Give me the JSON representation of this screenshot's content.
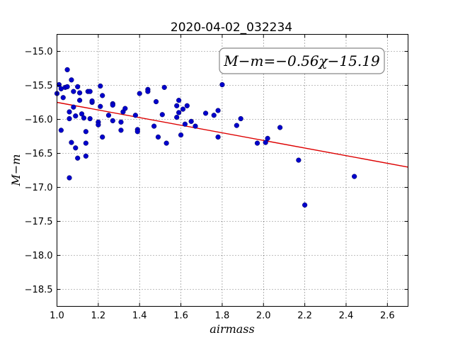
{
  "chart_data": {
    "type": "scatter",
    "title": "2020-04-02_032234",
    "xlabel": "airmass",
    "ylabel": "M−m",
    "xlim": [
      1.0,
      2.7
    ],
    "ylim": [
      -18.75,
      -14.75
    ],
    "y_inverted": true,
    "grid": true,
    "x_ticks": [
      1.0,
      1.2,
      1.4,
      1.6,
      1.8,
      2.0,
      2.2,
      2.4,
      2.6
    ],
    "x_tick_labels": [
      "1.0",
      "1.2",
      "1.4",
      "1.6",
      "1.8",
      "2.0",
      "2.2",
      "2.4",
      "2.6"
    ],
    "y_ticks": [
      -15.0,
      -15.5,
      -16.0,
      -16.5,
      -17.0,
      -17.5,
      -18.0,
      -18.5
    ],
    "y_tick_labels": [
      "−15.0",
      "−15.5",
      "−16.0",
      "−16.5",
      "−17.0",
      "−17.5",
      "−18.0",
      "−18.5"
    ],
    "annotation": "M−m=−0.56χ−15.19",
    "fit": {
      "slope": -0.56,
      "intercept": -15.19,
      "color": "#dd0000"
    },
    "marker_color": "#0000cc",
    "points": [
      {
        "x": 1.0,
        "y": -15.62
      },
      {
        "x": 1.01,
        "y": -15.49
      },
      {
        "x": 1.02,
        "y": -15.55
      },
      {
        "x": 1.02,
        "y": -16.16
      },
      {
        "x": 1.03,
        "y": -15.68
      },
      {
        "x": 1.04,
        "y": -15.53
      },
      {
        "x": 1.05,
        "y": -15.27
      },
      {
        "x": 1.05,
        "y": -15.52
      },
      {
        "x": 1.06,
        "y": -15.89
      },
      {
        "x": 1.06,
        "y": -15.99
      },
      {
        "x": 1.06,
        "y": -16.86
      },
      {
        "x": 1.07,
        "y": -16.34
      },
      {
        "x": 1.07,
        "y": -15.42
      },
      {
        "x": 1.08,
        "y": -15.59
      },
      {
        "x": 1.08,
        "y": -15.82
      },
      {
        "x": 1.09,
        "y": -15.95
      },
      {
        "x": 1.09,
        "y": -16.42
      },
      {
        "x": 1.1,
        "y": -15.52
      },
      {
        "x": 1.1,
        "y": -16.57
      },
      {
        "x": 1.11,
        "y": -15.61
      },
      {
        "x": 1.11,
        "y": -15.72
      },
      {
        "x": 1.12,
        "y": -15.92
      },
      {
        "x": 1.13,
        "y": -15.98
      },
      {
        "x": 1.14,
        "y": -16.18
      },
      {
        "x": 1.14,
        "y": -16.35
      },
      {
        "x": 1.14,
        "y": -16.54
      },
      {
        "x": 1.15,
        "y": -15.59
      },
      {
        "x": 1.16,
        "y": -15.59
      },
      {
        "x": 1.16,
        "y": -15.99
      },
      {
        "x": 1.17,
        "y": -15.75
      },
      {
        "x": 1.17,
        "y": -15.73
      },
      {
        "x": 1.2,
        "y": -16.04
      },
      {
        "x": 1.2,
        "y": -16.08
      },
      {
        "x": 1.21,
        "y": -15.51
      },
      {
        "x": 1.21,
        "y": -15.81
      },
      {
        "x": 1.22,
        "y": -15.65
      },
      {
        "x": 1.22,
        "y": -16.26
      },
      {
        "x": 1.25,
        "y": -15.94
      },
      {
        "x": 1.27,
        "y": -15.77
      },
      {
        "x": 1.27,
        "y": -15.79
      },
      {
        "x": 1.27,
        "y": -16.02
      },
      {
        "x": 1.31,
        "y": -16.04
      },
      {
        "x": 1.31,
        "y": -16.16
      },
      {
        "x": 1.32,
        "y": -15.89
      },
      {
        "x": 1.33,
        "y": -15.84
      },
      {
        "x": 1.38,
        "y": -15.94
      },
      {
        "x": 1.39,
        "y": -16.15
      },
      {
        "x": 1.39,
        "y": -16.18
      },
      {
        "x": 1.4,
        "y": -15.62
      },
      {
        "x": 1.44,
        "y": -15.56
      },
      {
        "x": 1.44,
        "y": -15.59
      },
      {
        "x": 1.47,
        "y": -16.1
      },
      {
        "x": 1.48,
        "y": -15.74
      },
      {
        "x": 1.49,
        "y": -16.26
      },
      {
        "x": 1.51,
        "y": -15.93
      },
      {
        "x": 1.52,
        "y": -15.53
      },
      {
        "x": 1.53,
        "y": -16.35
      },
      {
        "x": 1.58,
        "y": -15.8
      },
      {
        "x": 1.58,
        "y": -15.97
      },
      {
        "x": 1.59,
        "y": -15.72
      },
      {
        "x": 1.59,
        "y": -15.9
      },
      {
        "x": 1.6,
        "y": -16.23
      },
      {
        "x": 1.61,
        "y": -15.85
      },
      {
        "x": 1.62,
        "y": -16.07
      },
      {
        "x": 1.63,
        "y": -15.8
      },
      {
        "x": 1.65,
        "y": -16.03
      },
      {
        "x": 1.67,
        "y": -16.1
      },
      {
        "x": 1.72,
        "y": -15.91
      },
      {
        "x": 1.76,
        "y": -15.94
      },
      {
        "x": 1.78,
        "y": -16.26
      },
      {
        "x": 1.78,
        "y": -15.87
      },
      {
        "x": 1.8,
        "y": -15.49
      },
      {
        "x": 1.87,
        "y": -16.09
      },
      {
        "x": 1.89,
        "y": -15.99
      },
      {
        "x": 1.97,
        "y": -16.35
      },
      {
        "x": 2.01,
        "y": -16.34
      },
      {
        "x": 2.02,
        "y": -16.28
      },
      {
        "x": 2.08,
        "y": -16.12
      },
      {
        "x": 2.17,
        "y": -16.6
      },
      {
        "x": 2.2,
        "y": -17.26
      },
      {
        "x": 2.44,
        "y": -16.84
      }
    ]
  }
}
